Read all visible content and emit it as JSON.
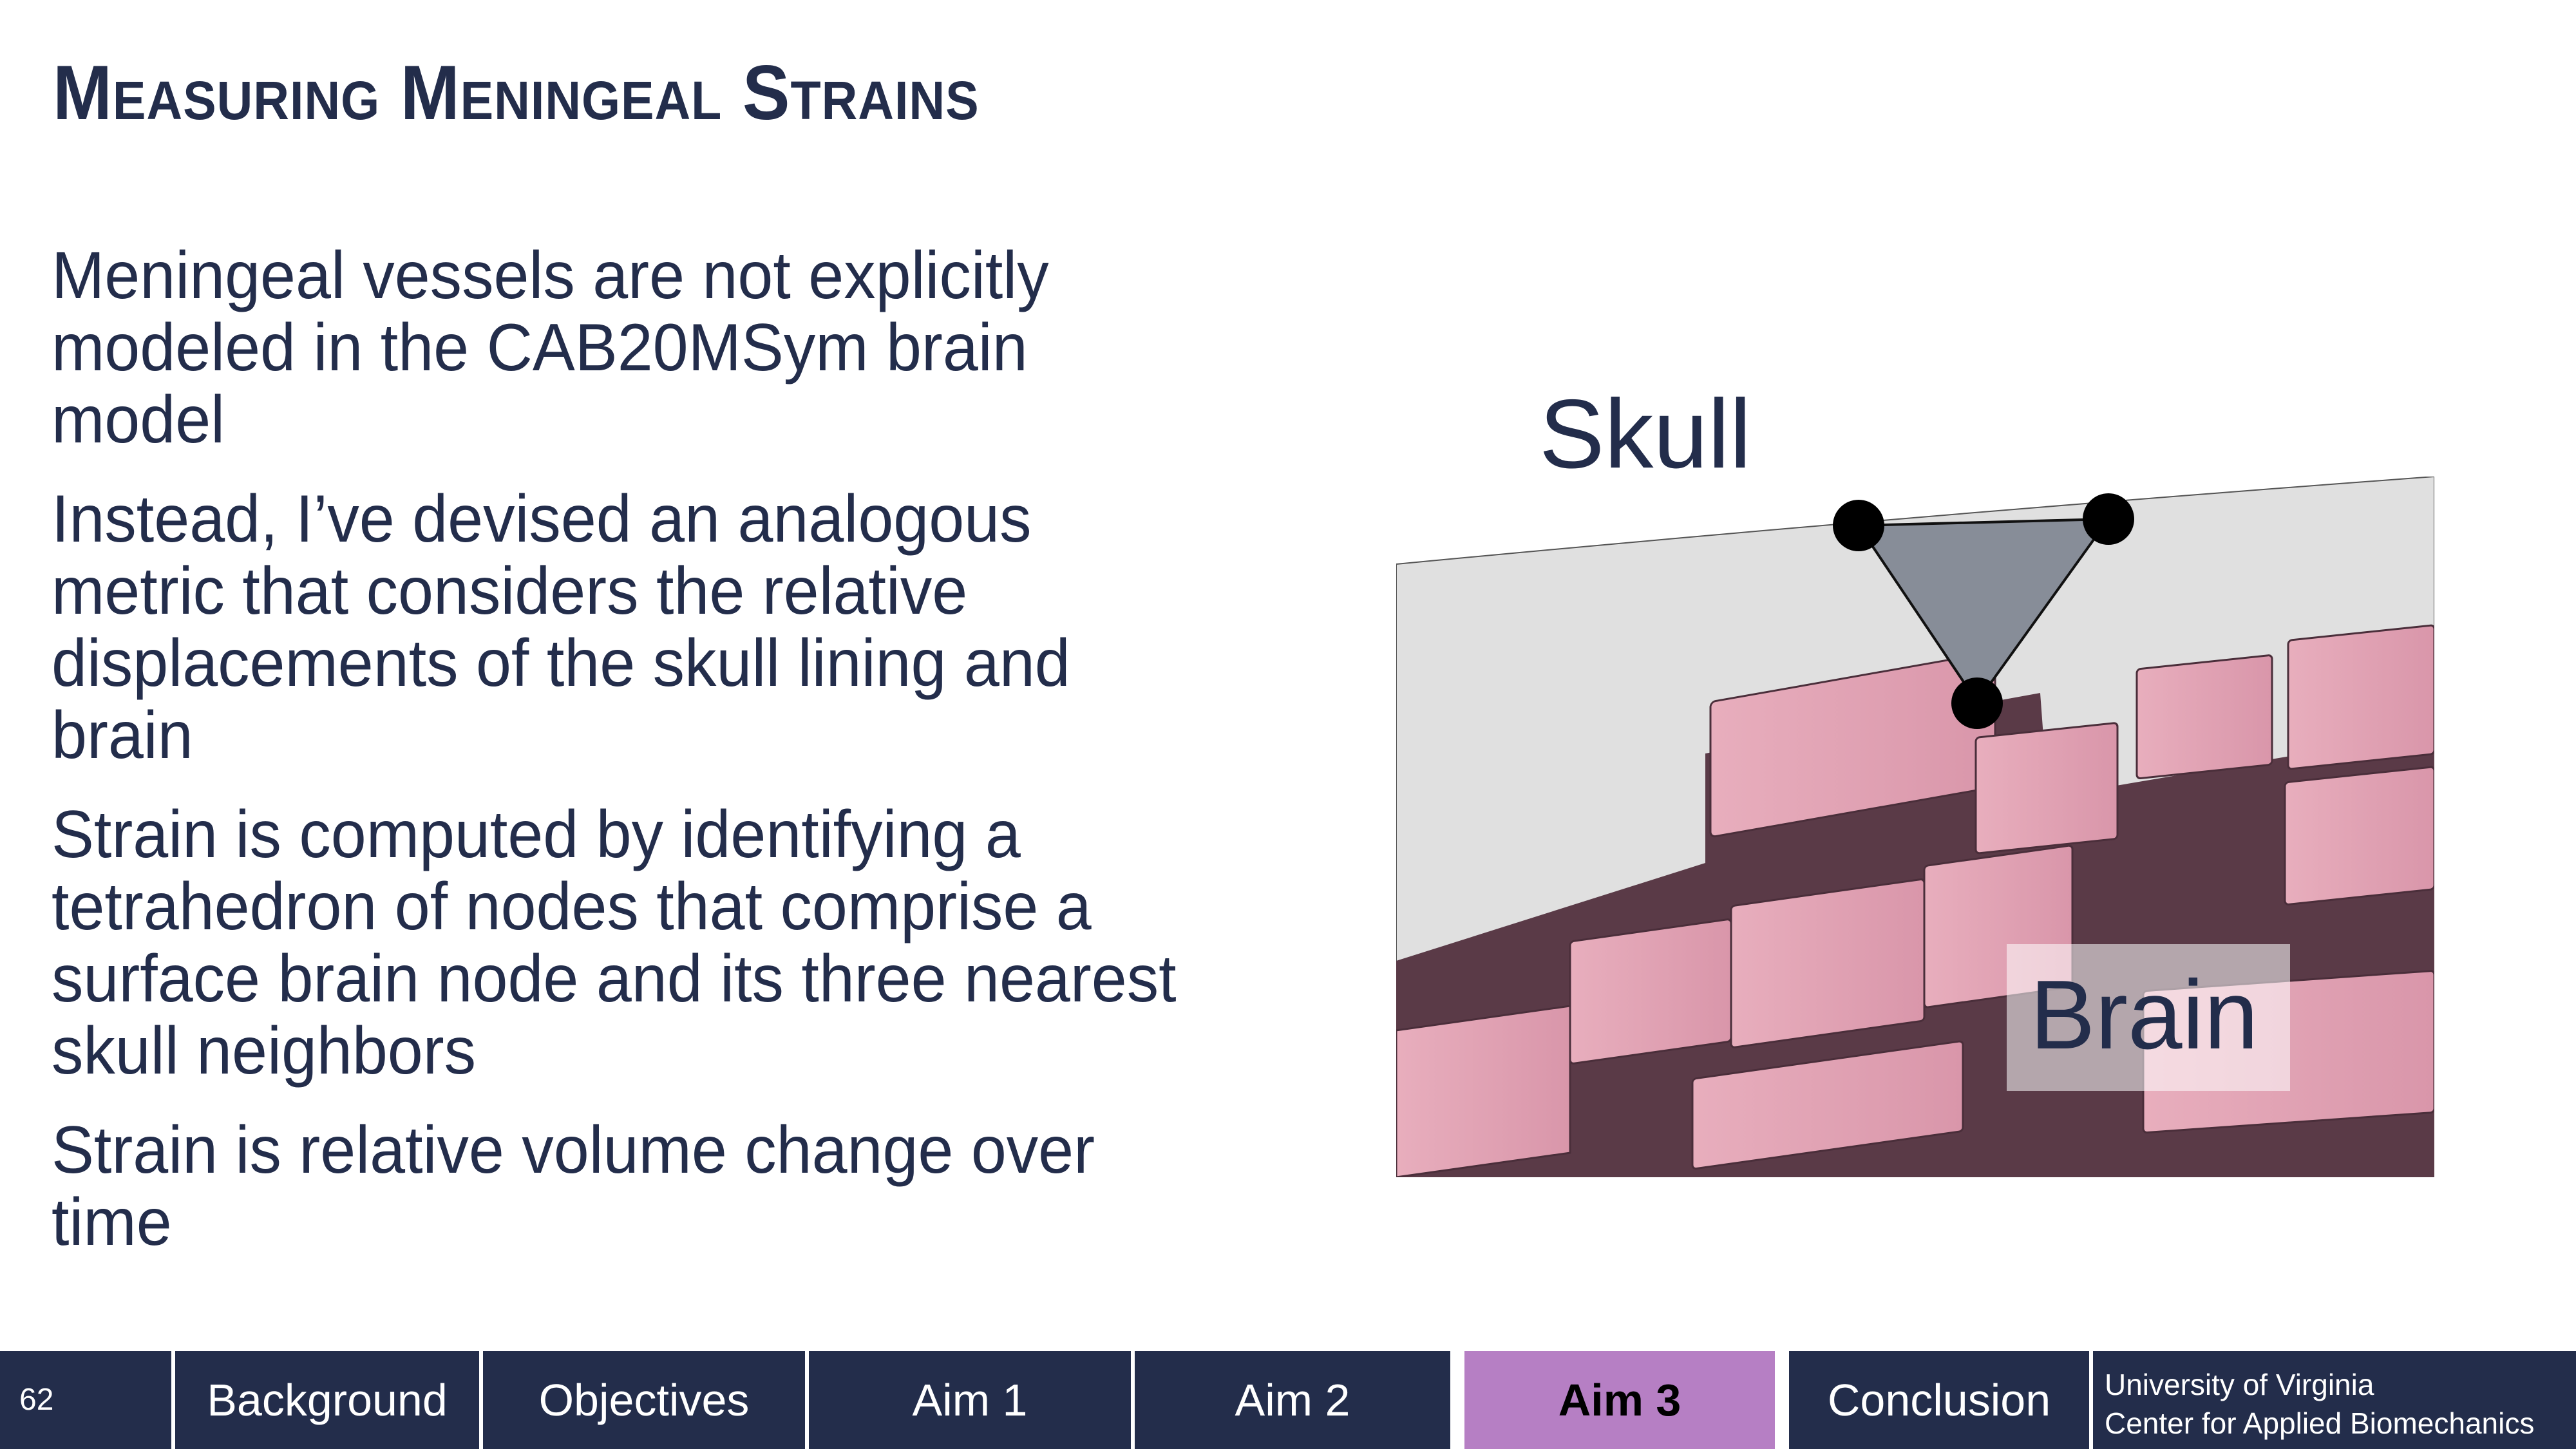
{
  "slide": {
    "title": "Measuring Meningeal Strains",
    "bullets": [
      "Meningeal vessels are not explicitly modeled in the CAB20MSym brain model",
      "Instead, I’ve devised an analogous metric that considers the relative displacements of the skull lining and brain",
      "Strain is computed by identifying a tetrahedron of nodes that comprise a surface brain node and its three nearest skull neighbors",
      "Strain is relative volume change over time"
    ],
    "figure": {
      "skull_label": "Skull",
      "brain_label": "Brain"
    }
  },
  "footer": {
    "slide_number": "62",
    "nav": [
      {
        "label": "Background",
        "active": false
      },
      {
        "label": "Objectives",
        "active": false
      },
      {
        "label": "Aim 1",
        "active": false
      },
      {
        "label": "Aim 2",
        "active": false
      },
      {
        "label": "Aim 3",
        "active": true
      },
      {
        "label": "Conclusion",
        "active": false
      }
    ],
    "org_line1": "University of Virginia",
    "org_line2": "Center for Applied Biomechanics"
  },
  "colors": {
    "navy": "#232d4b",
    "active_tab": "#b67fc4",
    "skull_fill": "#e0e0e0",
    "brain_pink": "#e3a3b6",
    "brain_dark": "#5a3a47",
    "tetra_fill": "#878d98"
  }
}
